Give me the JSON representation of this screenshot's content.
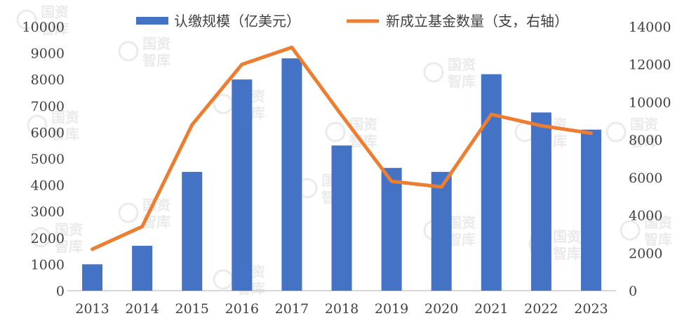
{
  "watermark": {
    "text": "国资智库"
  },
  "colors": {
    "bar": "#4472C4",
    "line": "#ED7D31",
    "axis": "#BFBFBF",
    "text": "#404040"
  },
  "chart_data": {
    "type": "bar",
    "categories": [
      "2013",
      "2014",
      "2015",
      "2016",
      "2017",
      "2018",
      "2019",
      "2020",
      "2021",
      "2022",
      "2023"
    ],
    "series": [
      {
        "name": "认缴规模（亿美元）",
        "type": "bar",
        "axis": "left",
        "values": [
          1000,
          1700,
          4500,
          8000,
          8800,
          5500,
          4650,
          4500,
          8200,
          6750,
          6100
        ]
      },
      {
        "name": "新成立基金数量（支，右轴）",
        "type": "line",
        "axis": "right",
        "values": [
          2200,
          3400,
          8800,
          12000,
          12900,
          9300,
          5800,
          5500,
          9350,
          8750,
          8350
        ]
      }
    ],
    "y_left": {
      "min": 0,
      "max": 10000,
      "ticks": [
        "0",
        "1000",
        "2000",
        "3000",
        "4000",
        "5000",
        "6000",
        "7000",
        "8000",
        "9000",
        "10000"
      ]
    },
    "y_right": {
      "min": 0,
      "max": 14000,
      "ticks": [
        "0",
        "2000",
        "4000",
        "6000",
        "8000",
        "10000",
        "12000",
        "14000"
      ]
    },
    "legend_position": "top",
    "grid": false
  }
}
